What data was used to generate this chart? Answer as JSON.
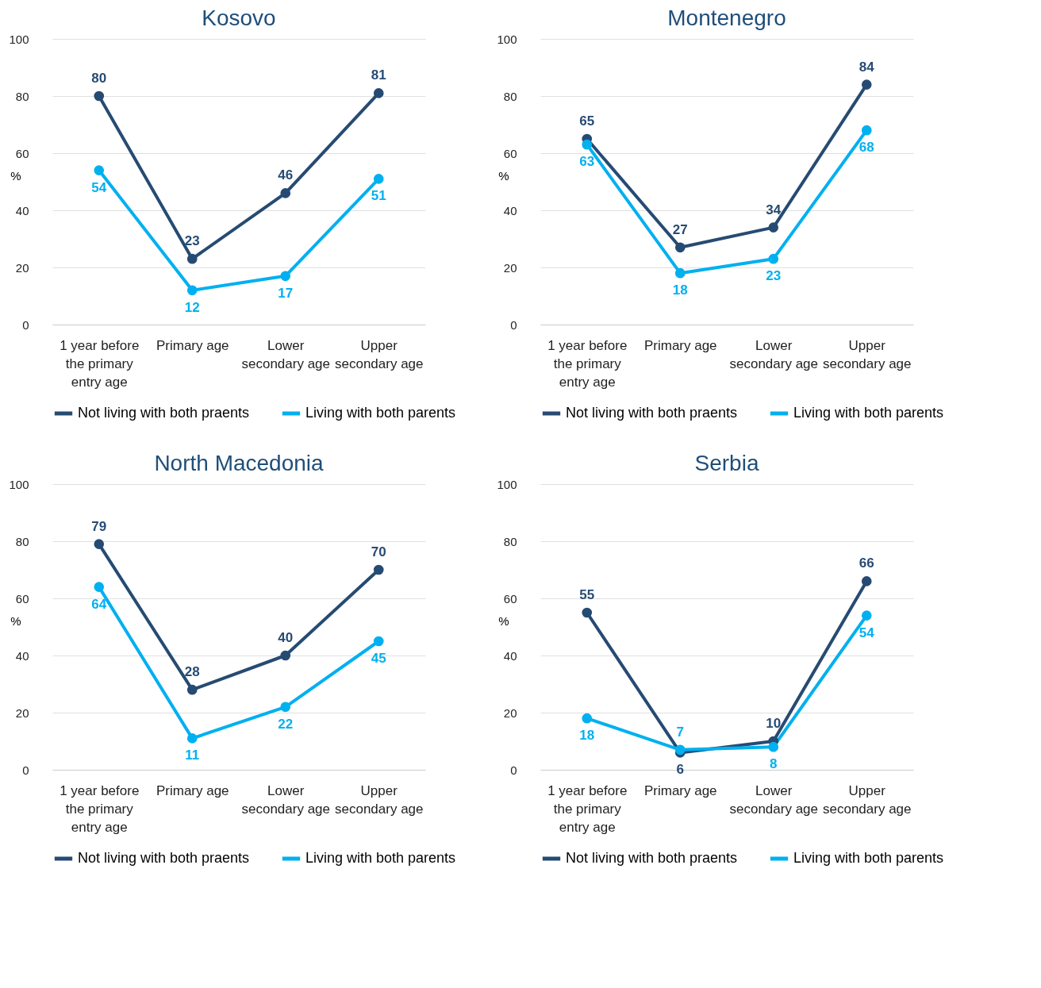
{
  "chart_data": [
    {
      "type": "line",
      "title": "Kosovo",
      "ylabel": "%",
      "categories": [
        "1 year before the primary entry age",
        "Primary age",
        "Lower secondary age",
        "Upper secondary age"
      ],
      "ylim": [
        0,
        100
      ],
      "yticks": [
        0,
        20,
        40,
        60,
        80,
        100
      ],
      "grid": "y",
      "legend": "bottom",
      "marker": "circle",
      "line_style": "solid",
      "data_labels": true,
      "series": [
        {
          "name": "Not living with both praents",
          "color": "#264b73",
          "values": [
            80,
            23,
            46,
            81
          ]
        },
        {
          "name": "Living with both parents",
          "color": "#00b0f0",
          "values": [
            54,
            12,
            17,
            51
          ]
        }
      ]
    },
    {
      "type": "line",
      "title": "Montenegro",
      "ylabel": "%",
      "categories": [
        "1 year before the primary entry age",
        "Primary age",
        "Lower secondary age",
        "Upper secondary age"
      ],
      "ylim": [
        0,
        100
      ],
      "yticks": [
        0,
        20,
        40,
        60,
        80,
        100
      ],
      "grid": "y",
      "legend": "bottom",
      "marker": "circle",
      "line_style": "solid",
      "data_labels": true,
      "series": [
        {
          "name": "Not living with both praents",
          "color": "#264b73",
          "values": [
            65,
            27,
            34,
            84
          ]
        },
        {
          "name": "Living with both parents",
          "color": "#00b0f0",
          "values": [
            63,
            18,
            23,
            68
          ]
        }
      ]
    },
    {
      "type": "line",
      "title": "North Macedonia",
      "ylabel": "%",
      "categories": [
        "1 year before the primary entry age",
        "Primary age",
        "Lower secondary age",
        "Upper secondary age"
      ],
      "ylim": [
        0,
        100
      ],
      "yticks": [
        0,
        20,
        40,
        60,
        80,
        100
      ],
      "grid": "y",
      "legend": "bottom",
      "marker": "circle",
      "line_style": "solid",
      "data_labels": true,
      "series": [
        {
          "name": "Not living with both praents",
          "color": "#264b73",
          "values": [
            79,
            28,
            40,
            70
          ]
        },
        {
          "name": "Living with both parents",
          "color": "#00b0f0",
          "values": [
            64,
            11,
            22,
            45
          ]
        }
      ]
    },
    {
      "type": "line",
      "title": "Serbia",
      "ylabel": "%",
      "categories": [
        "1 year before the primary entry age",
        "Primary age",
        "Lower secondary age",
        "Upper secondary age"
      ],
      "ylim": [
        0,
        100
      ],
      "yticks": [
        0,
        20,
        40,
        60,
        80,
        100
      ],
      "grid": "y",
      "legend": "bottom",
      "marker": "circle",
      "line_style": "solid",
      "data_labels": true,
      "series": [
        {
          "name": "Not living with both praents",
          "color": "#264b73",
          "values": [
            55,
            6,
            10,
            66
          ]
        },
        {
          "name": "Living with both parents",
          "color": "#00b0f0",
          "values": [
            18,
            7,
            8,
            54
          ]
        }
      ]
    }
  ]
}
